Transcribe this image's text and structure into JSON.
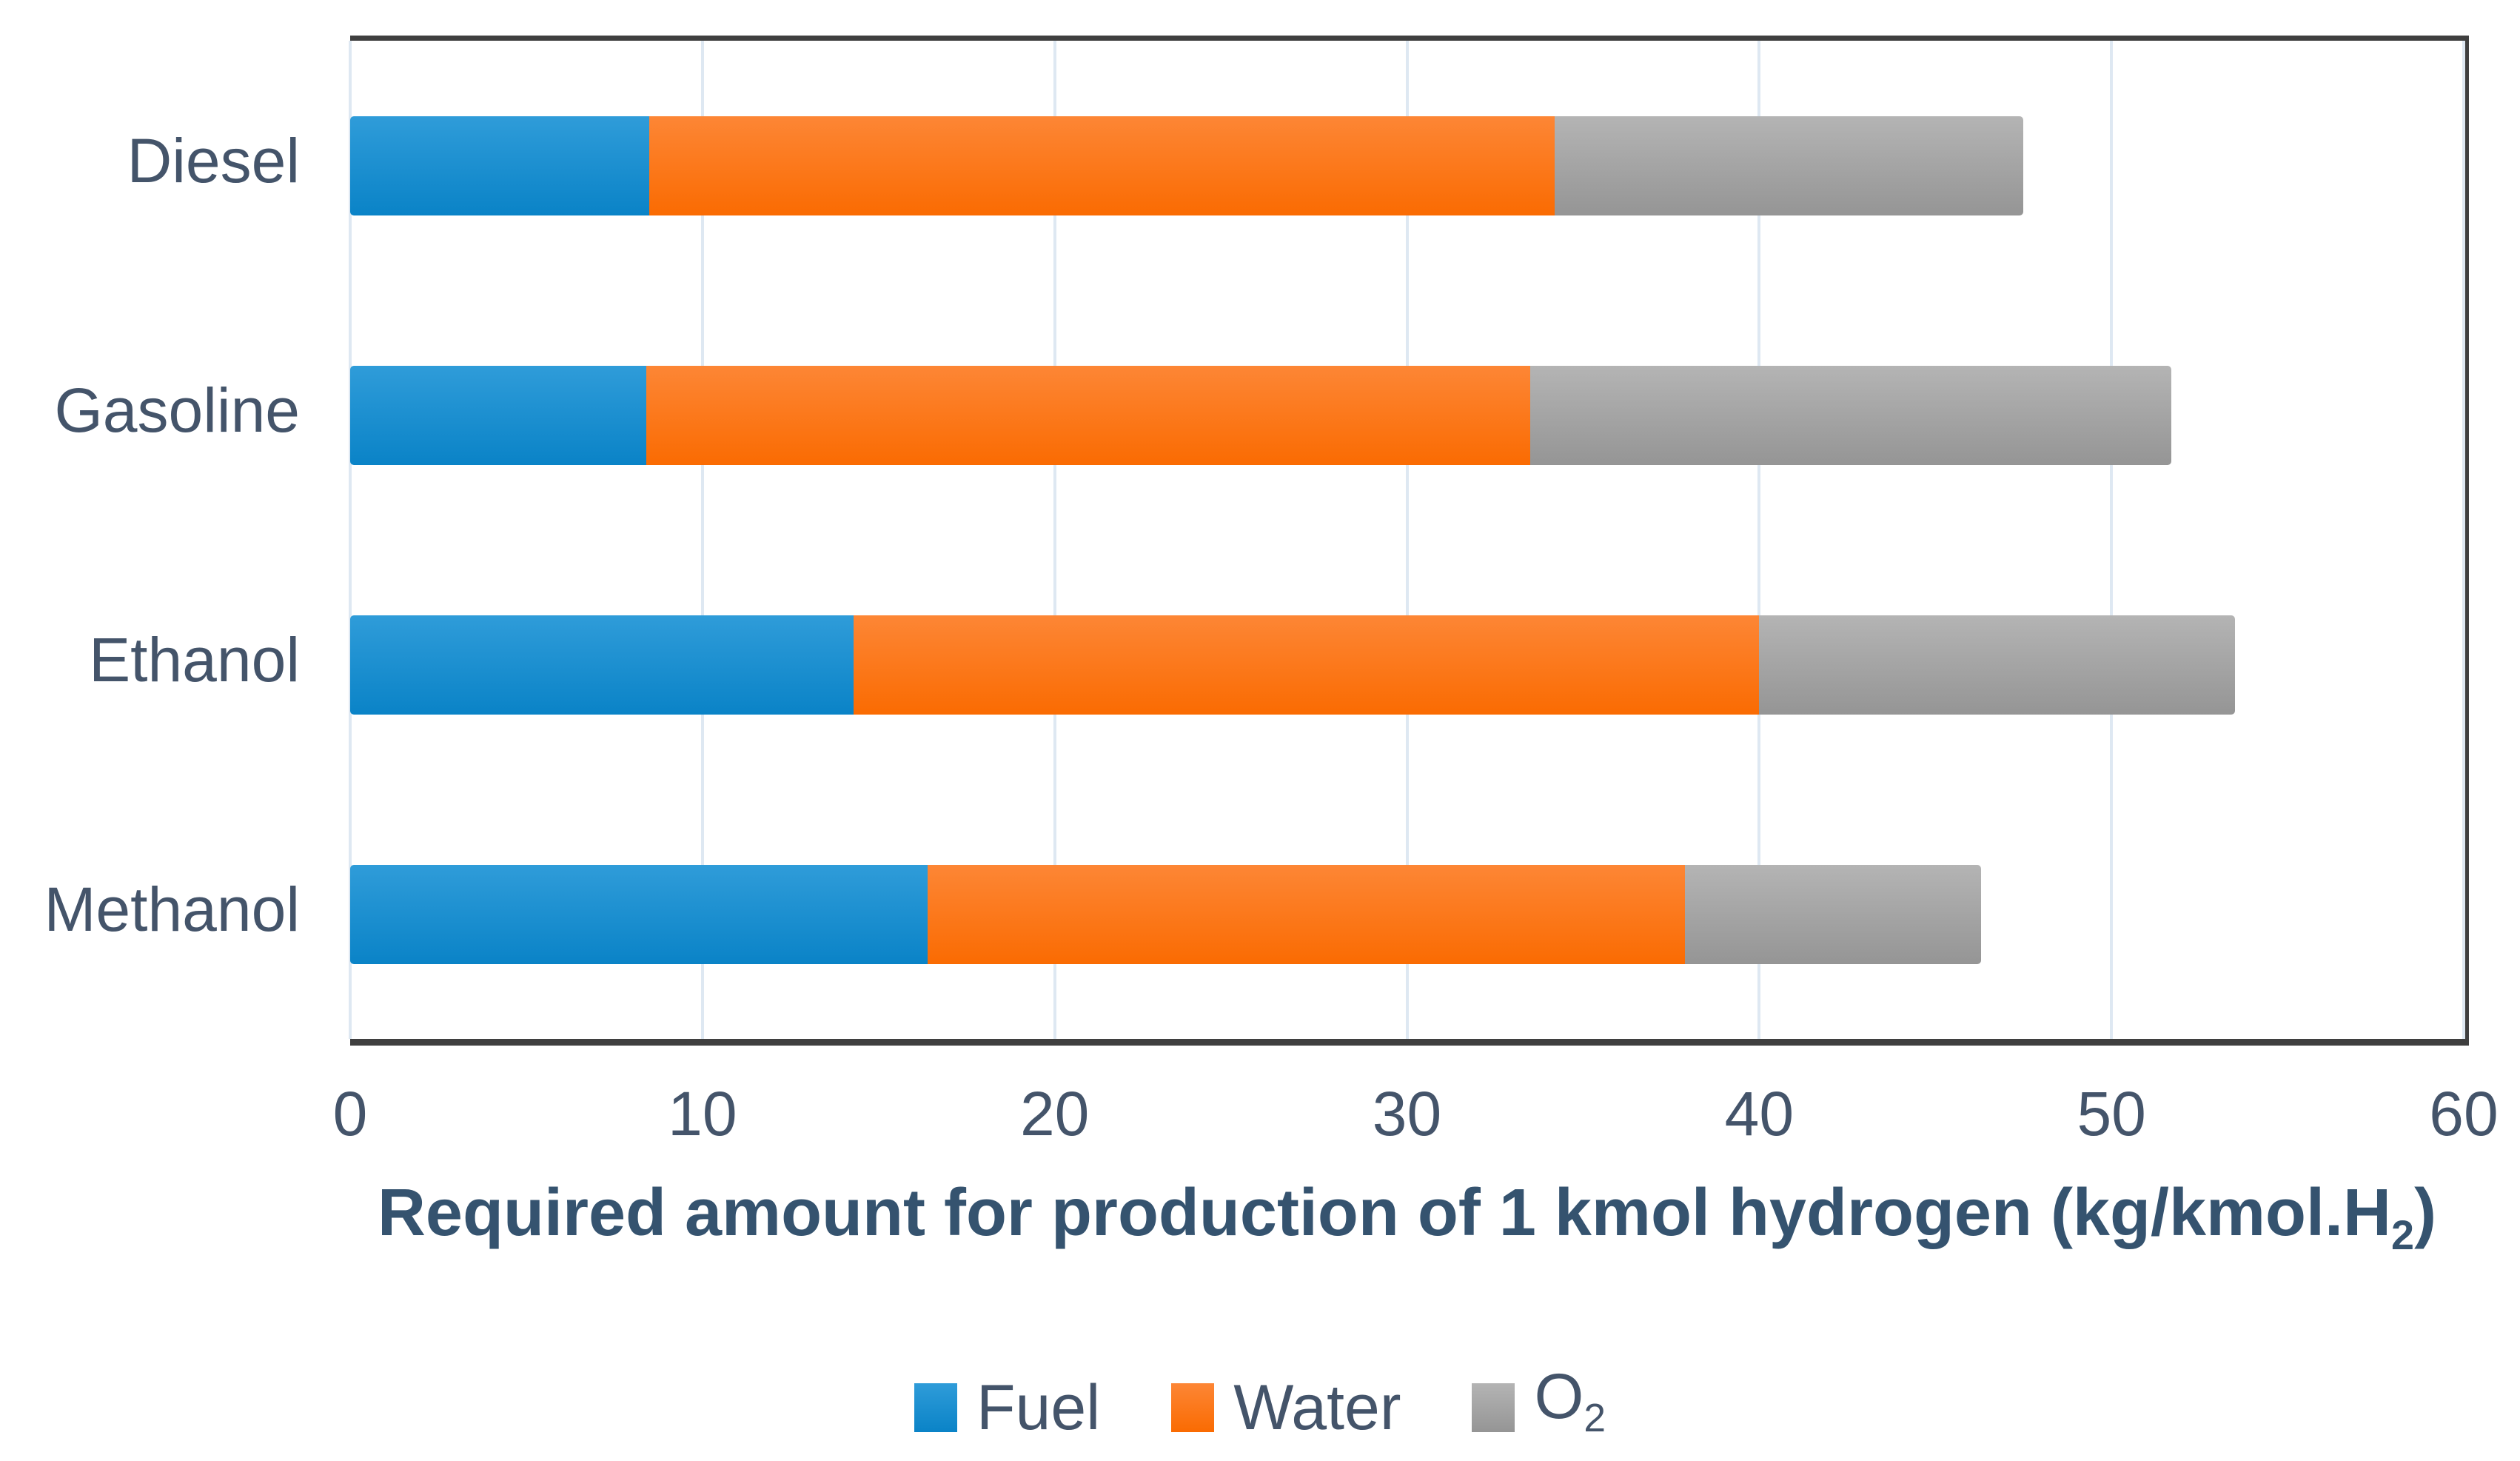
{
  "chart_data": {
    "type": "bar",
    "orientation": "horizontal",
    "stacked": true,
    "title": "",
    "xlabel": "Required amount for production of 1 kmol hydrogen (kg/kmol.H₂)",
    "xlabel_parts": {
      "main": "Required amount for production of 1 kmol hydrogen (kg/kmol.H",
      "sub": "2",
      "end": ")"
    },
    "ylabel": "",
    "categories": [
      "Diesel",
      "Gasoline",
      "Ethanol",
      "Methanol"
    ],
    "series": [
      {
        "name": "Fuel",
        "values": [
          8.5,
          8.4,
          14.3,
          16.4
        ],
        "color": "#1E90D2",
        "color_top": "#2F9CD9",
        "color_bottom": "#0A83C7"
      },
      {
        "name": "Water",
        "values": [
          25.7,
          25.1,
          25.7,
          21.5
        ],
        "color": "#FB7418",
        "color_top": "#FD8635",
        "color_bottom": "#FA6B02"
      },
      {
        "name": "O2",
        "values": [
          13.3,
          18.2,
          13.5,
          8.4
        ],
        "color": "#A6A6A6",
        "color_top": "#B4B4B4",
        "color_bottom": "#959595"
      }
    ],
    "totals": [
      47.5,
      51.7,
      53.5,
      46.3
    ],
    "xlim": [
      0,
      60
    ],
    "xticks": [
      0,
      10,
      20,
      30,
      40,
      50,
      60
    ],
    "grid": true,
    "legend_position": "bottom",
    "legend_items": [
      {
        "text": "Fuel",
        "sub": ""
      },
      {
        "text": "Water",
        "sub": ""
      },
      {
        "text": "O",
        "sub": "2"
      }
    ],
    "colors": {
      "axis_text": "#44546A",
      "title_text": "#35536F",
      "axis_line": "#3F3F3F",
      "gridline": "#DEE8F2"
    }
  }
}
